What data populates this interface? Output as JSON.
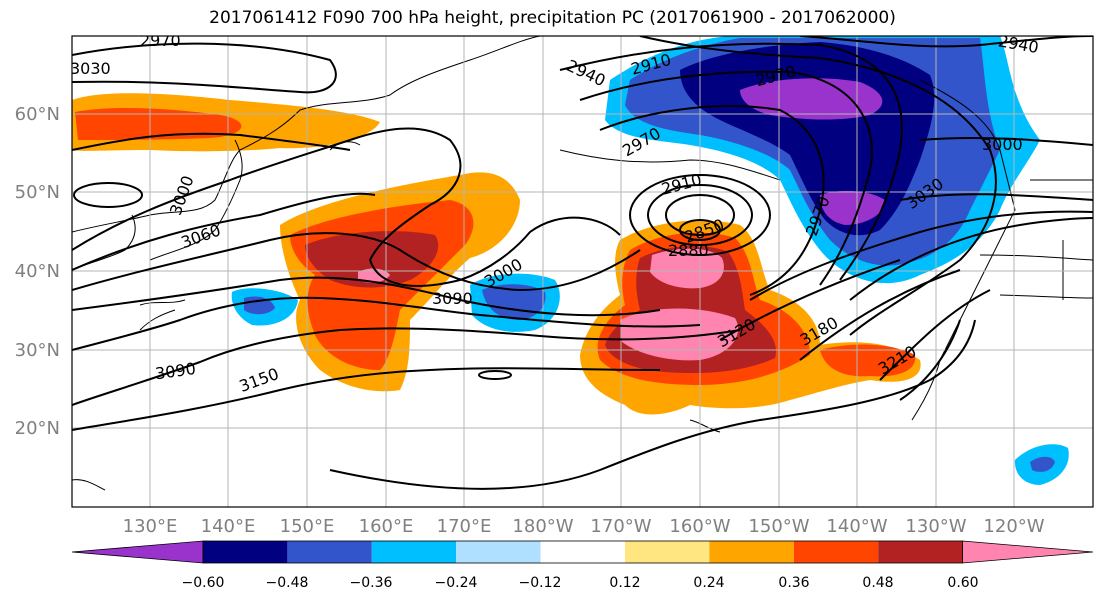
{
  "title": "2017061412 F090 700 hPa height, precipitation PC (2017061900 - 2017062000)",
  "chart_data": {
    "type": "map",
    "lat_ticks": [
      "60°N",
      "50°N",
      "40°N",
      "30°N",
      "20°N"
    ],
    "lon_ticks": [
      "130°E",
      "140°E",
      "150°E",
      "160°E",
      "170°E",
      "180°W",
      "170°W",
      "160°W",
      "150°W",
      "140°W",
      "130°W",
      "120°W"
    ],
    "grid": true,
    "contour_labels": [
      "2970",
      "3030",
      "3000",
      "3060",
      "3090",
      "3150",
      "3000",
      "3090",
      "2940",
      "2910",
      "2970",
      "2940",
      "2970",
      "2910",
      "2850",
      "2880",
      "3120",
      "3180",
      "3210",
      "2970",
      "3000",
      "3030"
    ],
    "colorbar": {
      "ticks": [
        "−0.60",
        "−0.48",
        "−0.36",
        "−0.24",
        "−0.12",
        "0.12",
        "0.24",
        "0.36",
        "0.48",
        "0.60"
      ],
      "colors": [
        "#9933cc",
        "#000080",
        "#3355cc",
        "#00bfff",
        "#b0e0ff",
        "#ffffff",
        "#ffe680",
        "#ffa500",
        "#ff4500",
        "#b22222",
        "#ff85b0"
      ],
      "extend": "both"
    }
  }
}
